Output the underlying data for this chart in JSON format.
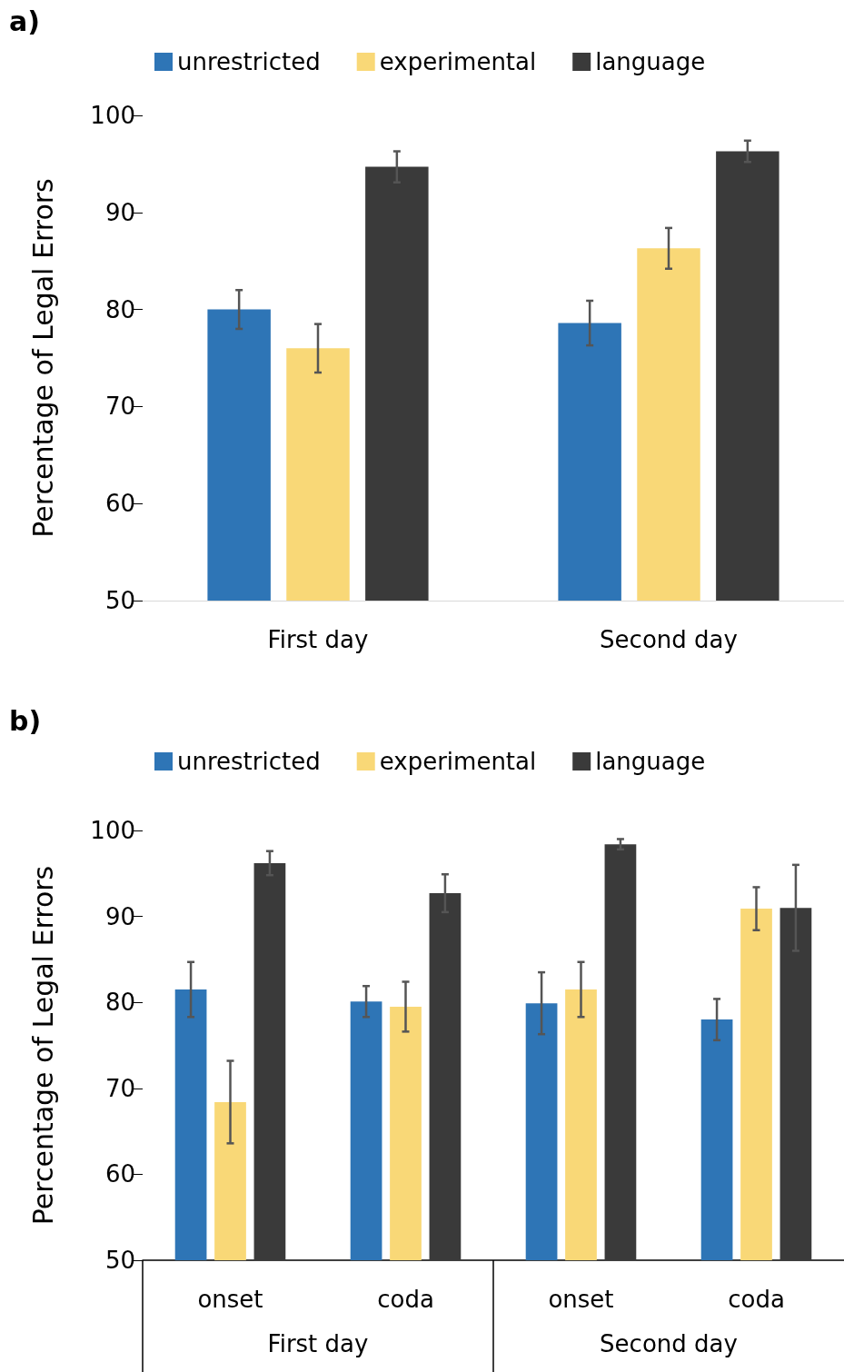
{
  "chart_data": [
    {
      "type": "bar",
      "title": "a)",
      "ylabel": "Percentage of Legal Errors",
      "categories": [
        "First day",
        "Second day"
      ],
      "series": [
        {
          "name": "unrestricted",
          "color": "#2e75b6",
          "values": [
            80.0,
            78.6
          ],
          "errors": [
            2.0,
            2.3
          ]
        },
        {
          "name": "experimental",
          "color": "#f9d877",
          "values": [
            76.0,
            86.3
          ],
          "errors": [
            2.5,
            2.1
          ]
        },
        {
          "name": "language",
          "color": "#3a3a3a",
          "values": [
            94.7,
            96.3
          ],
          "errors": [
            1.6,
            1.1
          ]
        }
      ],
      "ylim": [
        50,
        100
      ],
      "yticks": [
        50,
        60,
        70,
        80,
        90,
        100
      ],
      "grid": false,
      "legend": "top"
    },
    {
      "type": "bar",
      "title": "b)",
      "ylabel": "Percentage of Legal Errors",
      "categories": [
        "onset",
        "coda",
        "onset",
        "coda"
      ],
      "series": [
        {
          "name": "unrestricted",
          "color": "#2e75b6",
          "values": [
            81.5,
            80.1,
            79.9,
            78.0
          ],
          "errors": [
            3.2,
            1.8,
            3.6,
            2.4
          ]
        },
        {
          "name": "experimental",
          "color": "#f9d877",
          "values": [
            68.4,
            79.5,
            81.5,
            90.9
          ],
          "errors": [
            4.8,
            2.9,
            3.2,
            2.5
          ]
        },
        {
          "name": "language",
          "color": "#3a3a3a",
          "values": [
            96.2,
            92.7,
            98.4,
            91.0
          ],
          "errors": [
            1.4,
            2.2,
            0.6,
            5.0
          ]
        }
      ],
      "annotations": [
        "First day",
        "Second day"
      ],
      "ylim": [
        50,
        100
      ],
      "yticks": [
        50,
        60,
        70,
        80,
        90,
        100
      ],
      "grid": false,
      "legend": "top"
    }
  ]
}
